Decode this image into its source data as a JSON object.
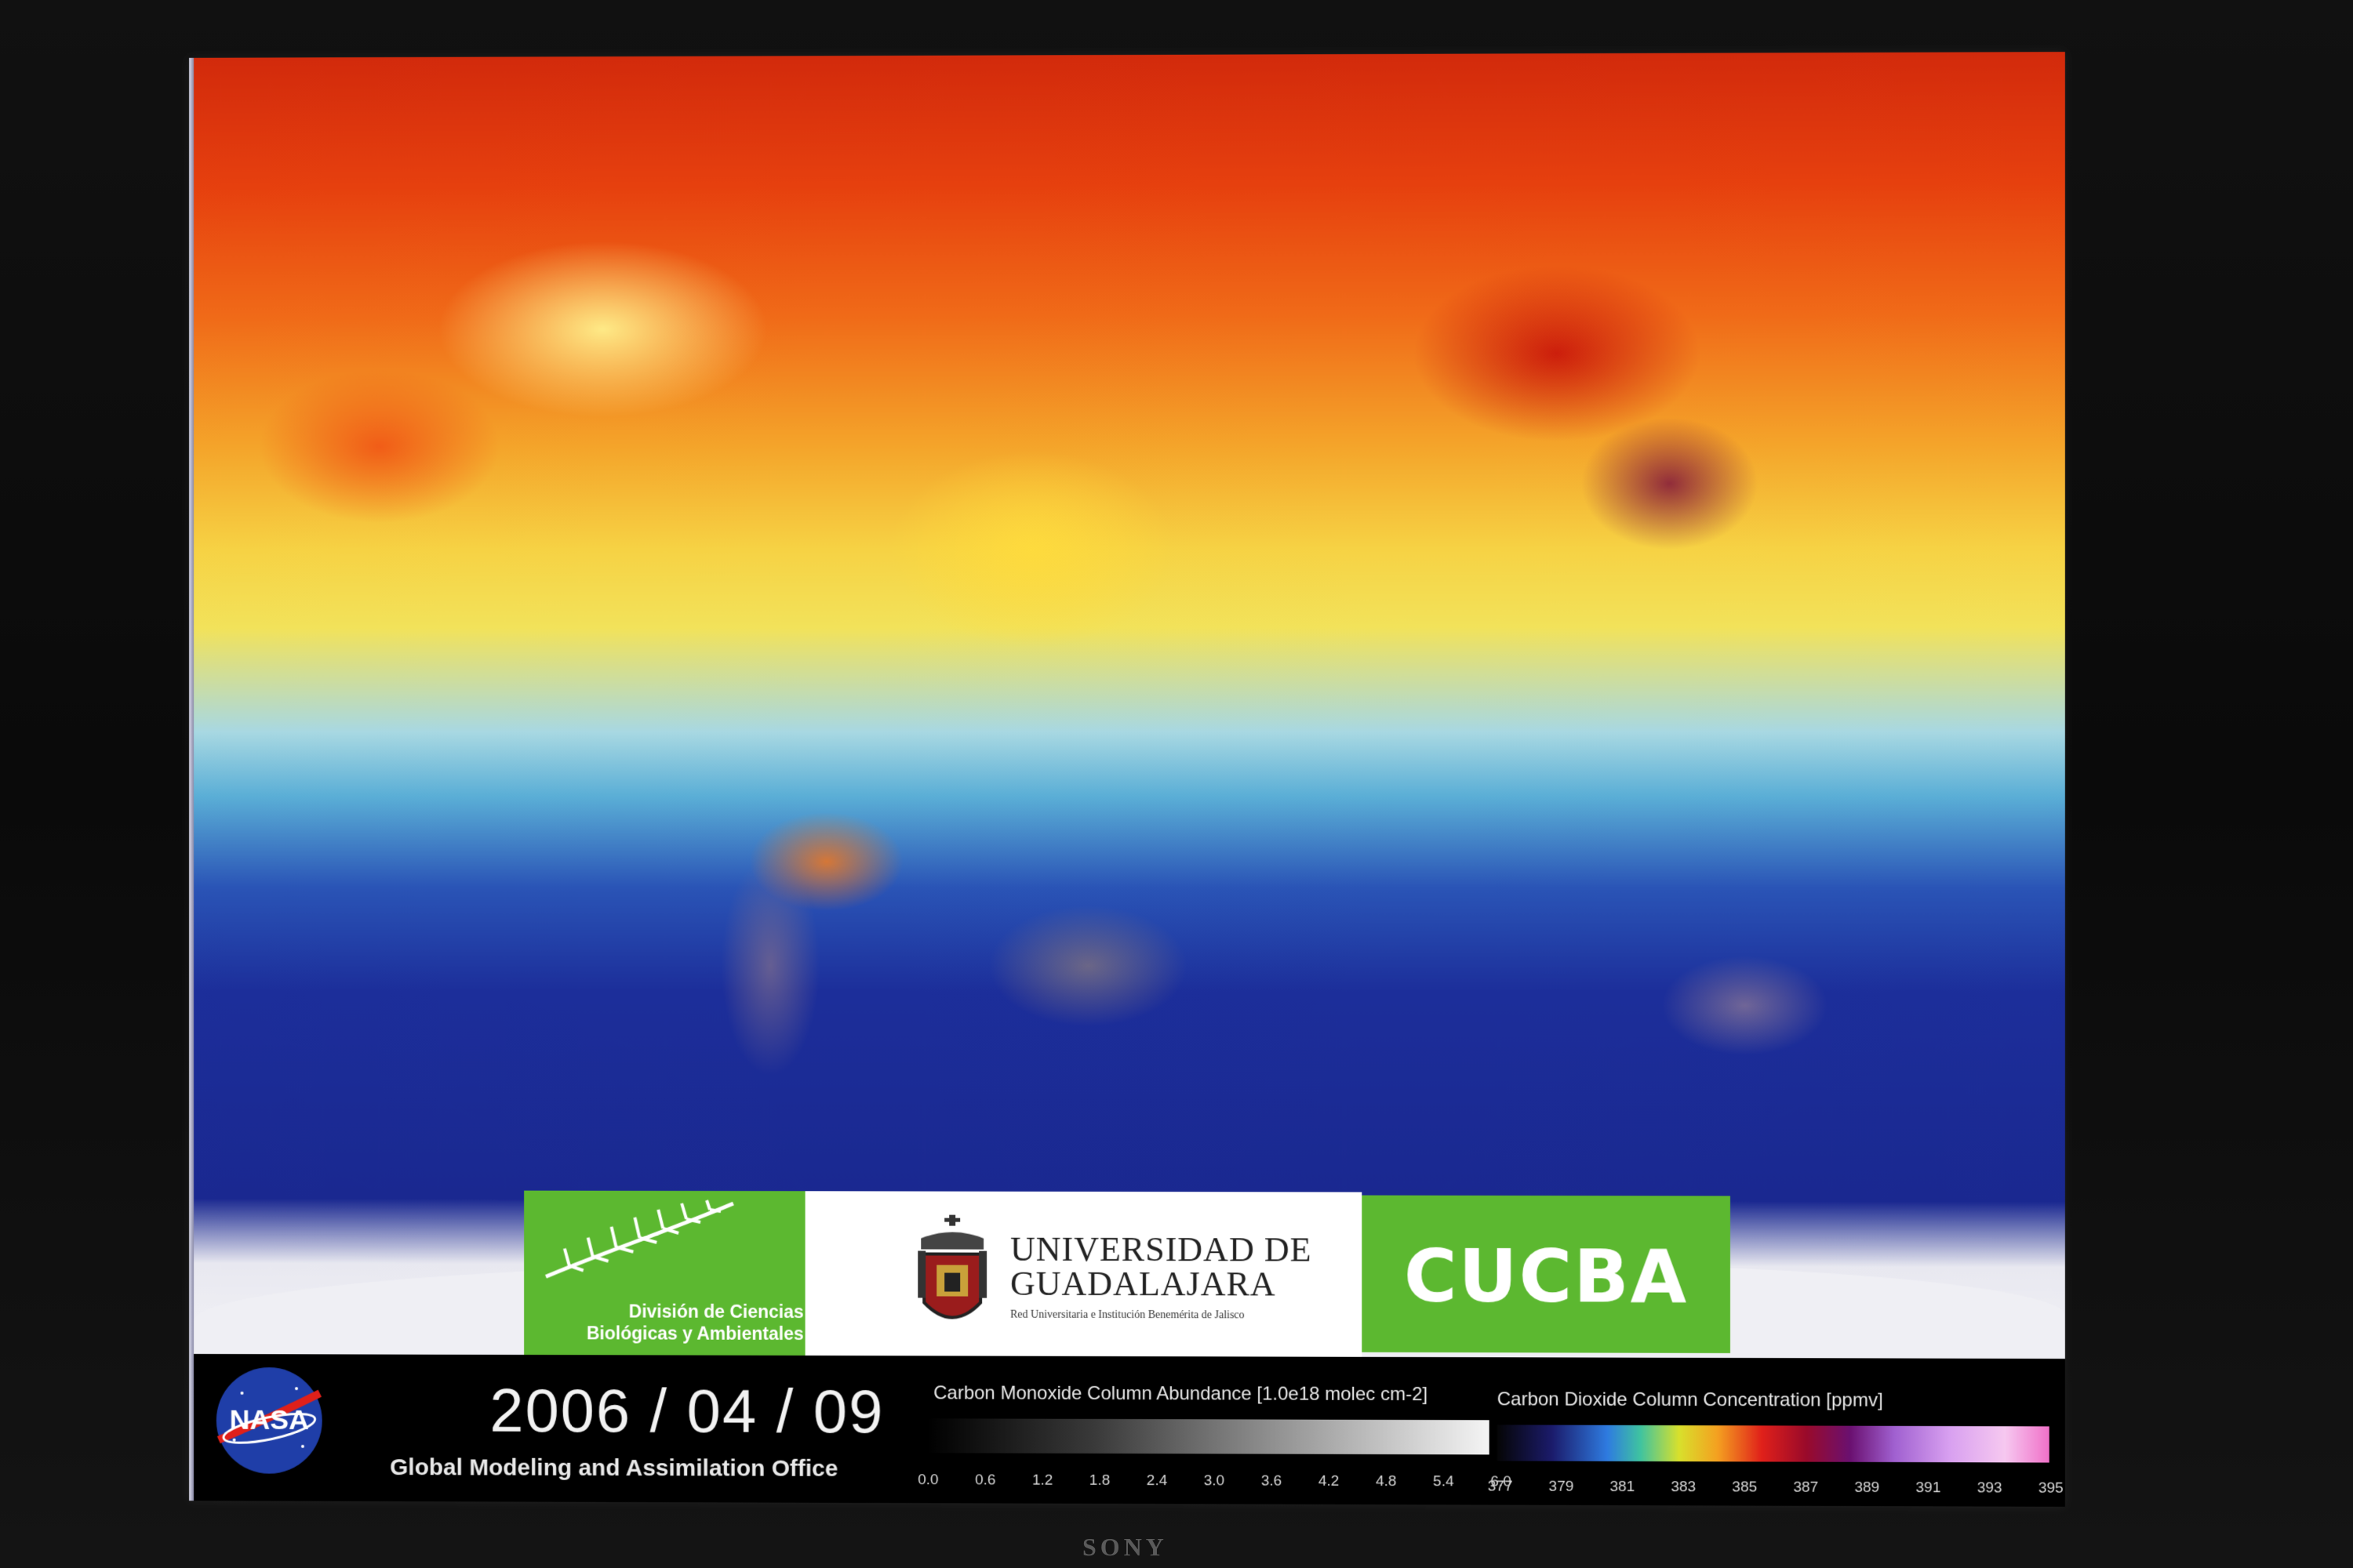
{
  "bottom_bar": {
    "date": "2006 / 04 / 09",
    "office": "Global Modeling and Assimilation Office",
    "nasa_logo_text": "NASA",
    "co_scale": {
      "title": "Carbon Monoxide Column Abundance [1.0e18 molec cm-2]",
      "ticks": [
        "0.0",
        "0.6",
        "1.2",
        "1.8",
        "2.4",
        "3.0",
        "3.6",
        "4.2",
        "4.8",
        "5.4",
        "6.0"
      ]
    },
    "co2_scale": {
      "title": "Carbon Dioxide Column Concentration [ppmv]",
      "ticks": [
        "377",
        "379",
        "381",
        "383",
        "385",
        "387",
        "389",
        "391",
        "393",
        "395"
      ]
    }
  },
  "logos": {
    "division_line1": "División de Ciencias",
    "division_line2": "Biológicas y Ambientales",
    "udg_line1": "UNIVERSIDAD DE",
    "udg_line2": "GUADALAJARA",
    "udg_sub": "Red Universitaria e Institución Benemérita de Jalisco",
    "cucba": "CUCBA"
  },
  "monitor": {
    "brand": "SONY"
  },
  "colors": {
    "logo_green": "#5cb830",
    "background": "#000000"
  }
}
